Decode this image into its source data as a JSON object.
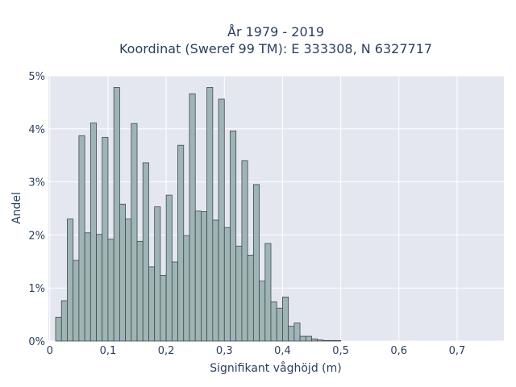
{
  "chart_data": {
    "type": "bar",
    "title": "År 1979 - 2019",
    "subtitle": "Koordinat (Sweref 99 TM): E 333308, N 6327717",
    "xlabel": "Signifikant våghöjd (m)",
    "ylabel": "Andel",
    "bin_width": 0.01,
    "x_start": 0.01,
    "values": [
      0.45,
      0.76,
      2.3,
      1.52,
      3.87,
      2.04,
      4.11,
      2.01,
      3.84,
      1.92,
      4.78,
      2.58,
      2.3,
      4.1,
      1.88,
      3.36,
      1.4,
      2.53,
      1.24,
      2.75,
      1.49,
      3.69,
      1.99,
      4.66,
      2.45,
      2.44,
      4.78,
      2.28,
      4.56,
      2.14,
      3.96,
      1.79,
      3.4,
      1.62,
      2.95,
      1.13,
      1.84,
      0.74,
      0.62,
      0.83,
      0.28,
      0.34,
      0.09,
      0.09,
      0.04,
      0.02,
      0.01,
      0.01,
      0.01
    ],
    "xlim": [
      -0.0025,
      0.7805
    ],
    "ylim": [
      0,
      5
    ],
    "xticks": [
      0,
      0.1,
      0.2,
      0.3,
      0.4,
      0.5,
      0.6,
      0.7
    ],
    "xtick_labels": [
      "0",
      "0,1",
      "0,2",
      "0,3",
      "0,4",
      "0,5",
      "0,6",
      "0,7"
    ],
    "yticks": [
      0,
      1,
      2,
      3,
      4,
      5
    ],
    "ytick_labels": [
      "0%",
      "1%",
      "2%",
      "3%",
      "4%",
      "5%"
    ],
    "grid": true,
    "colors": {
      "bar_fill": "#9fb5b5",
      "bar_stroke": "#3d4a4a",
      "plot_bg": "#e5e7f0",
      "grid": "#ffffff",
      "text": "#2a3f5f"
    }
  }
}
